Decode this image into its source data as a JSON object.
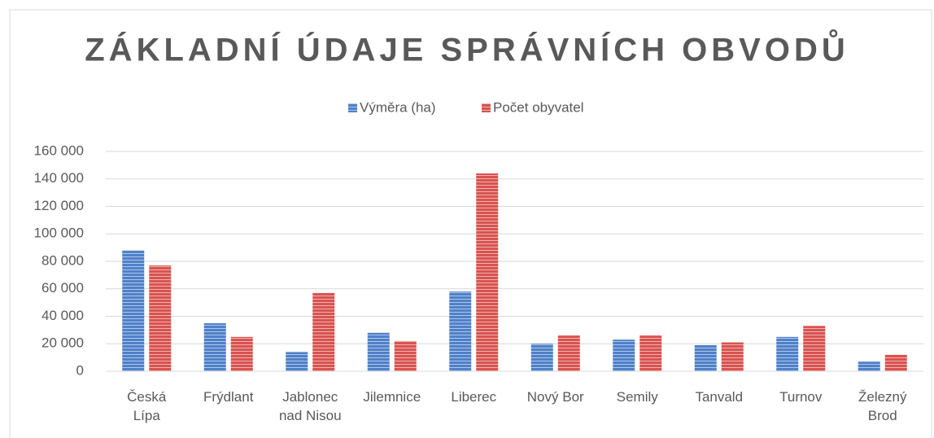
{
  "chart_data": {
    "type": "bar",
    "title": "ZÁKLADNÍ ÚDAJE SPRÁVNÍCH OBVODŮ",
    "categories": [
      "Česká Lípa",
      "Frýdlant",
      "Jablonec nad Nisou",
      "Jilemnice",
      "Liberec",
      "Nový Bor",
      "Semily",
      "Tanvald",
      "Turnov",
      "Železný Brod"
    ],
    "series": [
      {
        "name": "Výměra (ha)",
        "color": "#4f81c9",
        "values": [
          88000,
          35000,
          14000,
          28000,
          58000,
          20000,
          23000,
          19000,
          25000,
          7000
        ]
      },
      {
        "name": "Počet obyvatel",
        "color": "#d9534f",
        "values": [
          77000,
          25000,
          57000,
          22000,
          144000,
          26000,
          26000,
          21000,
          33000,
          12000
        ]
      }
    ],
    "ylim": [
      0,
      160000
    ],
    "yticks": [
      0,
      {
        "value": 20000,
        "label": "20 000"
      },
      {
        "value": 40000,
        "label": "40 000"
      },
      {
        "value": 60000,
        "label": "60 000"
      },
      {
        "value": 80000,
        "label": "80 000"
      },
      {
        "value": 100000,
        "label": "100 000"
      },
      {
        "value": 120000,
        "label": "120 000"
      },
      {
        "value": 140000,
        "label": "140 000"
      },
      {
        "value": 160000,
        "label": "160 000"
      }
    ],
    "grid": true,
    "legend": "top"
  }
}
